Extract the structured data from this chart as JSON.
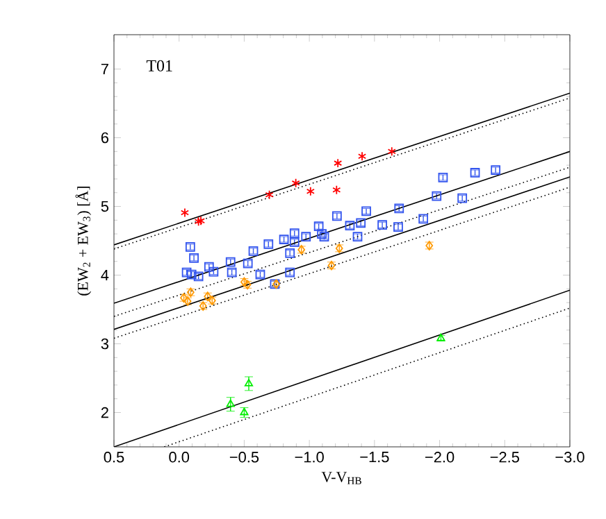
{
  "chart_data": {
    "type": "scatter",
    "xlabel": "V-V$_{HB}$",
    "ylabel": "(EW$_{2}$ + EW$_{3}$) [Å]",
    "annotations": [
      "T01"
    ],
    "xlim": [
      0.5,
      -3.0
    ],
    "ylim": [
      1.5,
      7.5
    ],
    "xticks": [
      {
        "value": 0.5,
        "label": "0.5"
      },
      {
        "value": 0,
        "label": "0.0"
      },
      {
        "value": -0.5,
        "label": "−0.5"
      },
      {
        "value": -1.0,
        "label": "−1.0"
      },
      {
        "value": -1.5,
        "label": "−1.5"
      },
      {
        "value": -2.0,
        "label": "−2.0"
      },
      {
        "value": -2.5,
        "label": "−2.5"
      },
      {
        "value": -3.0,
        "label": "−3.0"
      }
    ],
    "yticks": [
      2,
      3,
      4,
      5,
      6,
      7
    ],
    "series": [
      {
        "marker": "cross",
        "color": "#ff0000",
        "x": [
          -0.044,
          -0.149,
          -0.167,
          -0.693,
          -0.896,
          -1.009,
          -1.219,
          -1.209,
          -1.405,
          -1.633
        ],
        "values": [
          4.91,
          4.78,
          4.79,
          5.17,
          5.34,
          5.22,
          5.63,
          5.24,
          5.73,
          5.8
        ]
      },
      {
        "marker": "square",
        "color": "#3355ee",
        "x": [
          -0.086,
          -0.114,
          -0.058,
          -0.096,
          -0.149,
          -0.23,
          -0.265,
          -0.395,
          -0.405,
          -0.528,
          -0.57,
          -0.623,
          -0.686,
          -0.735,
          -0.805,
          -0.851,
          -0.851,
          -0.886,
          -0.886,
          -0.974,
          -1.072,
          -1.096,
          -1.114,
          -1.212,
          -1.311,
          -1.395,
          -1.37,
          -1.437,
          -1.56,
          -1.682,
          -1.689,
          -1.875,
          -1.977,
          -2.026,
          -2.174,
          -2.272,
          -2.43
        ],
        "values": [
          4.41,
          4.25,
          4.04,
          4.01,
          3.98,
          4.12,
          4.05,
          4.19,
          4.04,
          4.17,
          4.35,
          4.01,
          4.45,
          3.87,
          4.52,
          4.32,
          4.04,
          4.61,
          4.48,
          4.56,
          4.71,
          4.6,
          4.56,
          4.86,
          4.72,
          4.76,
          4.56,
          4.93,
          4.73,
          4.7,
          4.97,
          4.82,
          5.15,
          5.42,
          5.12,
          5.49,
          5.53
        ],
        "errors": [
          0.04,
          0.04,
          0.04,
          0.04,
          0.04,
          0.04,
          0.04,
          0.04,
          0.04,
          0.04,
          0.04,
          0.04,
          0.04,
          0.04,
          0.04,
          0.04,
          0.04,
          0.04,
          0.04,
          0.04,
          0.04,
          0.04,
          0.04,
          0.04,
          0.04,
          0.04,
          0.04,
          0.04,
          0.04,
          0.04,
          0.04,
          0.04,
          0.04,
          0.04,
          0.04,
          0.04,
          0.04
        ]
      },
      {
        "marker": "diamond",
        "color": "#ff9900",
        "x": [
          -0.036,
          -0.089,
          -0.066,
          -0.184,
          -0.219,
          -0.254,
          -0.5,
          -0.525,
          -0.746,
          -0.939,
          -1.23,
          -1.17,
          -1.921
        ],
        "values": [
          3.67,
          3.75,
          3.62,
          3.55,
          3.69,
          3.63,
          3.9,
          3.86,
          3.87,
          4.37,
          4.39,
          4.14,
          4.43
        ],
        "errors": [
          0.05,
          0.05,
          0.05,
          0.05,
          0.05,
          0.05,
          0.05,
          0.05,
          0.05,
          0.05,
          0.05,
          0.05,
          0.05
        ]
      },
      {
        "marker": "triangle",
        "color": "#00ee00",
        "x": [
          -0.395,
          -0.5,
          -0.535,
          -2.01
        ],
        "values": [
          2.12,
          2.0,
          2.42,
          3.08
        ],
        "errors": [
          0.1,
          0.07,
          0.1,
          0.04
        ]
      },
      {
        "type": "line",
        "line_style": "solid",
        "color": "#000000",
        "x": [
          0.5,
          -3.0
        ],
        "values": [
          4.44,
          6.65
        ]
      },
      {
        "type": "line",
        "line_style": "dotted",
        "color": "#000000",
        "x": [
          0.5,
          -3.0
        ],
        "values": [
          4.38,
          6.58
        ]
      },
      {
        "type": "line",
        "line_style": "solid",
        "color": "#000000",
        "x": [
          0.5,
          -3.0
        ],
        "values": [
          3.59,
          5.8
        ]
      },
      {
        "type": "line",
        "line_style": "dotted",
        "color": "#000000",
        "x": [
          0.5,
          -3.0
        ],
        "values": [
          3.4,
          5.57
        ]
      },
      {
        "type": "line",
        "line_style": "solid",
        "color": "#000000",
        "x": [
          0.5,
          -3.0
        ],
        "values": [
          3.21,
          5.43
        ]
      },
      {
        "type": "line",
        "line_style": "dotted",
        "color": "#000000",
        "x": [
          0.5,
          -3.0
        ],
        "values": [
          3.08,
          5.28
        ]
      },
      {
        "type": "line",
        "line_style": "solid",
        "color": "#000000",
        "x": [
          0.5,
          -3.0
        ],
        "values": [
          1.5,
          3.78
        ]
      },
      {
        "type": "line",
        "line_style": "dotted",
        "color": "#000000",
        "x": [
          0.114,
          -3.0
        ],
        "values": [
          1.5,
          3.52
        ]
      }
    ]
  }
}
